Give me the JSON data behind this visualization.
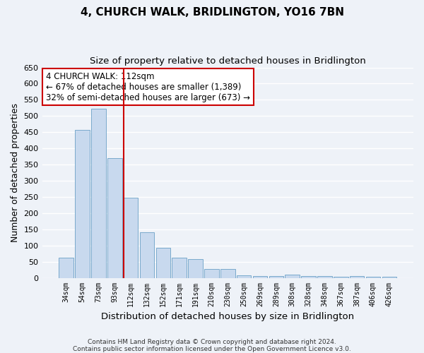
{
  "title": "4, CHURCH WALK, BRIDLINGTON, YO16 7BN",
  "subtitle": "Size of property relative to detached houses in Bridlington",
  "xlabel": "Distribution of detached houses by size in Bridlington",
  "ylabel": "Number of detached properties",
  "bar_labels": [
    "34sqm",
    "54sqm",
    "73sqm",
    "93sqm",
    "112sqm",
    "132sqm",
    "152sqm",
    "171sqm",
    "191sqm",
    "210sqm",
    "230sqm",
    "250sqm",
    "269sqm",
    "289sqm",
    "308sqm",
    "328sqm",
    "348sqm",
    "367sqm",
    "387sqm",
    "406sqm",
    "426sqm"
  ],
  "bar_values": [
    62,
    457,
    522,
    370,
    248,
    140,
    92,
    62,
    57,
    27,
    28,
    8,
    5,
    5,
    10,
    5,
    5,
    3,
    5,
    3,
    3
  ],
  "bar_color": "#c8d9ee",
  "bar_edgecolor": "#7aaacc",
  "vline_color": "#cc0000",
  "annotation_title": "4 CHURCH WALK: 112sqm",
  "annotation_line1": "← 67% of detached houses are smaller (1,389)",
  "annotation_line2": "32% of semi-detached houses are larger (673) →",
  "annotation_box_facecolor": "#ffffff",
  "annotation_box_edgecolor": "#cc0000",
  "ylim": [
    0,
    650
  ],
  "yticks": [
    0,
    50,
    100,
    150,
    200,
    250,
    300,
    350,
    400,
    450,
    500,
    550,
    600,
    650
  ],
  "footer_line1": "Contains HM Land Registry data © Crown copyright and database right 2024.",
  "footer_line2": "Contains public sector information licensed under the Open Government Licence v3.0.",
  "bg_color": "#eef2f8",
  "grid_color": "#ffffff"
}
